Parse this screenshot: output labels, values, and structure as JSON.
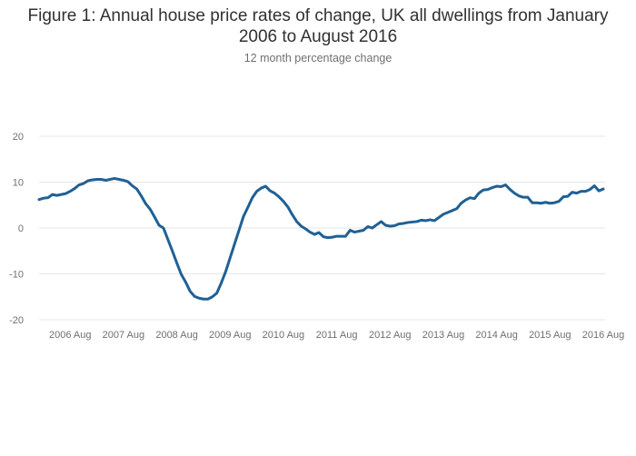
{
  "title_line1": "Figure 1: Annual house price rates of change, UK all dwellings from January",
  "title_line2": "2006 to August 2016",
  "subtitle": "12 month percentage change",
  "colors": {
    "series": "#206095",
    "grid": "#e6e6e6",
    "text": "#707071"
  },
  "chart_data": {
    "type": "line",
    "title": "Figure 1: Annual house price rates of change, UK all dwellings from January 2006 to August 2016",
    "subtitle": "12 month percentage change",
    "xlabel": "",
    "ylabel": "",
    "x_start": "2006-01",
    "x_step": "month",
    "ylim": [
      -20,
      20
    ],
    "yticks": [
      20,
      10,
      0,
      -10,
      -20
    ],
    "xticks": [
      {
        "index": 7,
        "label": "2006 Aug"
      },
      {
        "index": 19,
        "label": "2007 Aug"
      },
      {
        "index": 31,
        "label": "2008 Aug"
      },
      {
        "index": 43,
        "label": "2009 Aug"
      },
      {
        "index": 55,
        "label": "2010 Aug"
      },
      {
        "index": 67,
        "label": "2011 Aug"
      },
      {
        "index": 79,
        "label": "2012 Aug"
      },
      {
        "index": 91,
        "label": "2013 Aug"
      },
      {
        "index": 103,
        "label": "2014 Aug"
      },
      {
        "index": 115,
        "label": "2015 Aug"
      },
      {
        "index": 127,
        "label": "2016 Aug"
      }
    ],
    "series": [
      {
        "name": "UK all dwellings",
        "values": [
          6.2,
          6.5,
          6.6,
          7.3,
          7.1,
          7.3,
          7.5,
          8.0,
          8.6,
          9.4,
          9.7,
          10.3,
          10.5,
          10.6,
          10.6,
          10.4,
          10.6,
          10.8,
          10.6,
          10.4,
          10.1,
          9.2,
          8.5,
          7.0,
          5.3,
          4.1,
          2.4,
          0.6,
          0.0,
          -2.5,
          -5.0,
          -7.6,
          -10.1,
          -11.8,
          -13.8,
          -14.9,
          -15.3,
          -15.5,
          -15.5,
          -15.0,
          -14.2,
          -12.0,
          -9.5,
          -6.5,
          -3.5,
          -0.5,
          2.5,
          4.5,
          6.6,
          8.0,
          8.7,
          9.1,
          8.1,
          7.6,
          6.8,
          5.8,
          4.6,
          2.9,
          1.4,
          0.4,
          -0.2,
          -0.9,
          -1.4,
          -1.0,
          -1.9,
          -2.1,
          -2.0,
          -1.8,
          -1.8,
          -1.8,
          -0.5,
          -0.9,
          -0.7,
          -0.5,
          0.3,
          0.0,
          0.7,
          1.4,
          0.6,
          0.4,
          0.5,
          0.9,
          1.0,
          1.2,
          1.3,
          1.4,
          1.7,
          1.6,
          1.8,
          1.6,
          2.3,
          3.0,
          3.4,
          3.8,
          4.2,
          5.4,
          6.1,
          6.6,
          6.4,
          7.6,
          8.3,
          8.4,
          8.8,
          9.1,
          9.0,
          9.4,
          8.4,
          7.6,
          7.0,
          6.7,
          6.7,
          5.5,
          5.5,
          5.4,
          5.6,
          5.4,
          5.5,
          5.8,
          6.8,
          6.9,
          7.8,
          7.6,
          8.0,
          8.0,
          8.4,
          9.2,
          8.1,
          8.5
        ]
      }
    ]
  }
}
